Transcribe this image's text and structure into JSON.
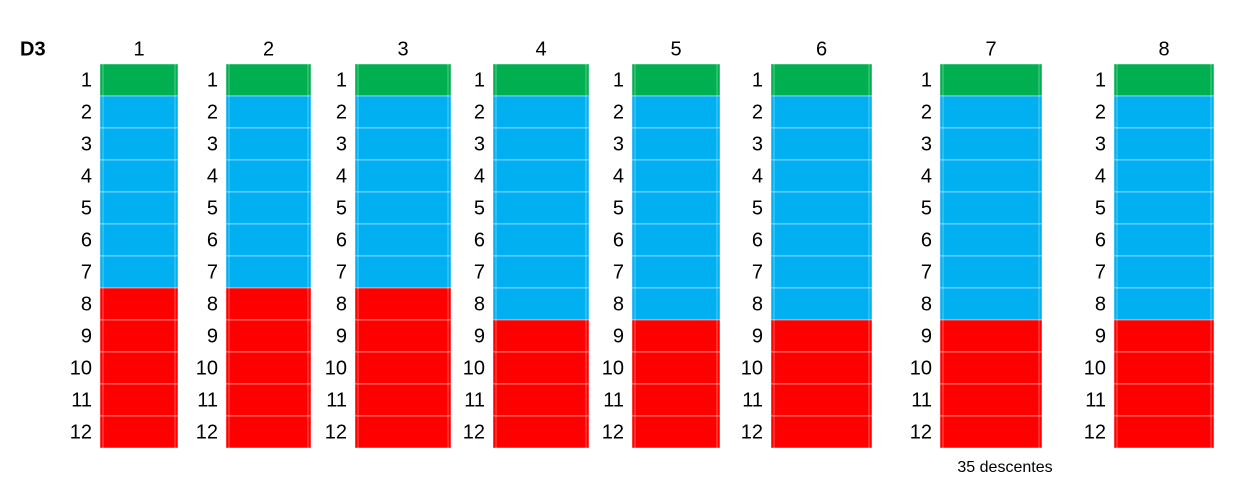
{
  "label": "D3",
  "row_labels": [
    "1",
    "2",
    "3",
    "4",
    "5",
    "6",
    "7",
    "8",
    "9",
    "10",
    "11",
    "12"
  ],
  "columns": [
    {
      "header": "1",
      "cells": [
        "#00b050",
        "#00b0f0",
        "#00b0f0",
        "#00b0f0",
        "#00b0f0",
        "#00b0f0",
        "#00b0f0",
        "#ff0000",
        "#ff0000",
        "#ff0000",
        "#ff0000",
        "#ff0000"
      ]
    },
    {
      "header": "2",
      "cells": [
        "#00b050",
        "#00b0f0",
        "#00b0f0",
        "#00b0f0",
        "#00b0f0",
        "#00b0f0",
        "#00b0f0",
        "#ff0000",
        "#ff0000",
        "#ff0000",
        "#ff0000",
        "#ff0000"
      ]
    },
    {
      "header": "3",
      "cells": [
        "#00b050",
        "#00b0f0",
        "#00b0f0",
        "#00b0f0",
        "#00b0f0",
        "#00b0f0",
        "#00b0f0",
        "#ff0000",
        "#ff0000",
        "#ff0000",
        "#ff0000",
        "#ff0000"
      ]
    },
    {
      "header": "4",
      "cells": [
        "#00b050",
        "#00b0f0",
        "#00b0f0",
        "#00b0f0",
        "#00b0f0",
        "#00b0f0",
        "#00b0f0",
        "#00b0f0",
        "#ff0000",
        "#ff0000",
        "#ff0000",
        "#ff0000"
      ]
    },
    {
      "header": "5",
      "cells": [
        "#00b050",
        "#00b0f0",
        "#00b0f0",
        "#00b0f0",
        "#00b0f0",
        "#00b0f0",
        "#00b0f0",
        "#00b0f0",
        "#ff0000",
        "#ff0000",
        "#ff0000",
        "#ff0000"
      ]
    },
    {
      "header": "6",
      "cells": [
        "#00b050",
        "#00b0f0",
        "#00b0f0",
        "#00b0f0",
        "#00b0f0",
        "#00b0f0",
        "#00b0f0",
        "#00b0f0",
        "#ff0000",
        "#ff0000",
        "#ff0000",
        "#ff0000"
      ]
    },
    {
      "header": "7",
      "cells": [
        "#00b050",
        "#00b0f0",
        "#00b0f0",
        "#00b0f0",
        "#00b0f0",
        "#00b0f0",
        "#00b0f0",
        "#00b0f0",
        "#ff0000",
        "#ff0000",
        "#ff0000",
        "#ff0000"
      ]
    },
    {
      "header": "8",
      "cells": [
        "#00b050",
        "#00b0f0",
        "#00b0f0",
        "#00b0f0",
        "#00b0f0",
        "#00b0f0",
        "#00b0f0",
        "#00b0f0",
        "#ff0000",
        "#ff0000",
        "#ff0000",
        "#ff0000"
      ]
    }
  ],
  "note": "35 descentes"
}
